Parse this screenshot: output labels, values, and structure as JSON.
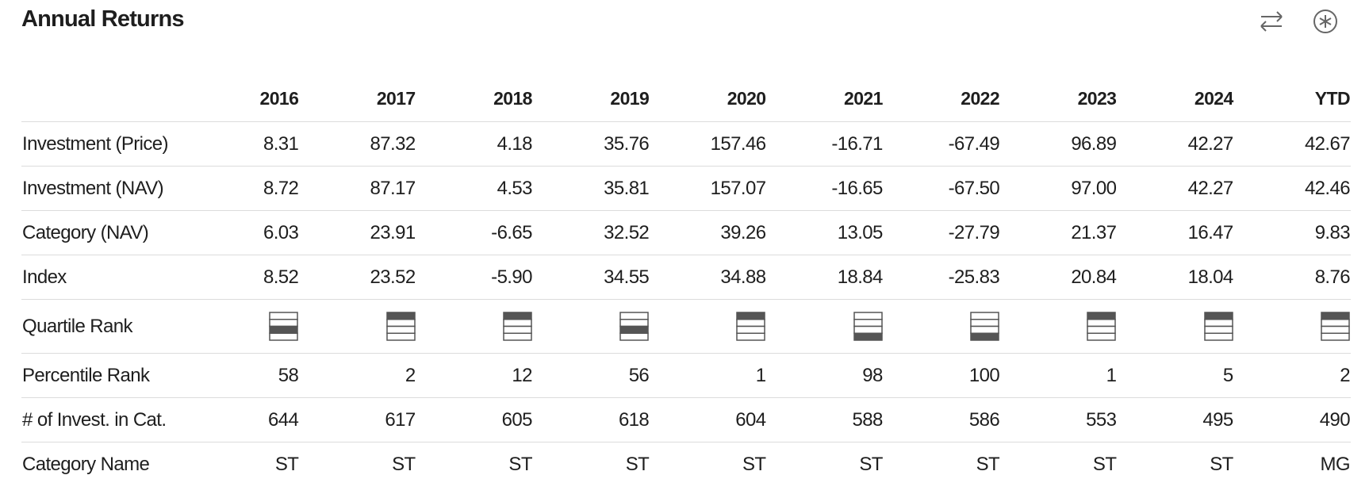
{
  "header": {
    "title": "Annual Returns"
  },
  "table": {
    "columns": [
      "2016",
      "2017",
      "2018",
      "2019",
      "2020",
      "2021",
      "2022",
      "2023",
      "2024",
      "YTD"
    ],
    "rows": [
      {
        "label": "Investment (Price)",
        "cells": [
          "8.31",
          "87.32",
          "4.18",
          "35.76",
          "157.46",
          "-16.71",
          "-67.49",
          "96.89",
          "42.27",
          "42.67"
        ]
      },
      {
        "label": "Investment (NAV)",
        "cells": [
          "8.72",
          "87.17",
          "4.53",
          "35.81",
          "157.07",
          "-16.65",
          "-67.50",
          "97.00",
          "42.27",
          "42.46"
        ]
      },
      {
        "label": "Category (NAV)",
        "cells": [
          "6.03",
          "23.91",
          "-6.65",
          "32.52",
          "39.26",
          "13.05",
          "-27.79",
          "21.37",
          "16.47",
          "9.83"
        ]
      },
      {
        "label": "Index",
        "cells": [
          "8.52",
          "23.52",
          "-5.90",
          "34.55",
          "34.88",
          "18.84",
          "-25.83",
          "20.84",
          "18.04",
          "8.76"
        ]
      },
      {
        "label": "Quartile Rank",
        "quartiles": [
          3,
          1,
          1,
          3,
          1,
          4,
          4,
          1,
          1,
          1
        ]
      },
      {
        "label": "Percentile Rank",
        "cells": [
          "58",
          "2",
          "12",
          "56",
          "1",
          "98",
          "100",
          "1",
          "5",
          "2"
        ]
      },
      {
        "label": "# of Invest. in Cat.",
        "cells": [
          "644",
          "617",
          "605",
          "618",
          "604",
          "588",
          "586",
          "553",
          "495",
          "490"
        ]
      },
      {
        "label": "Category Name",
        "cells": [
          "ST",
          "ST",
          "ST",
          "ST",
          "ST",
          "ST",
          "ST",
          "ST",
          "ST",
          "MG"
        ]
      }
    ]
  }
}
